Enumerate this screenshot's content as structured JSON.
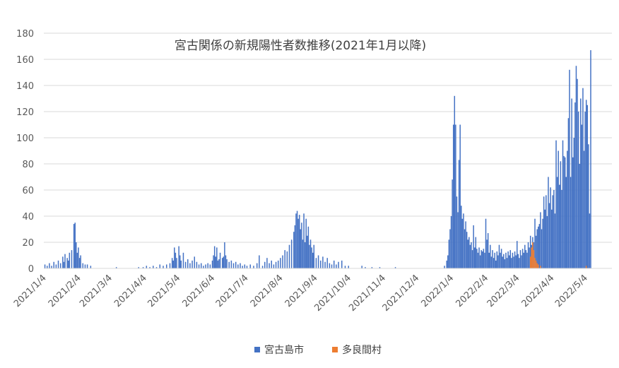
{
  "chart_data": {
    "type": "bar",
    "title": "宮古関係の新規陽性者数推移(2021年1月以降)",
    "xlabel": "",
    "ylabel": "",
    "ylim": [
      0,
      180
    ],
    "yticks": [
      0,
      20,
      40,
      60,
      80,
      100,
      120,
      140,
      160,
      180
    ],
    "x_range": [
      "2021-01-04",
      "2022-05-28"
    ],
    "x_tick_labels": [
      "2021/1/4",
      "2021/2/4",
      "2021/3/4",
      "2021/4/4",
      "2021/5/4",
      "2021/6/4",
      "2021/7/4",
      "2021/8/4",
      "2021/9/4",
      "2021/10/4",
      "2021/11/4",
      "2021/12/4",
      "2022/1/4",
      "2022/2/4",
      "2022/3/4",
      "2022/4/4",
      "2022/5/4"
    ],
    "grid": true,
    "legend_position": "bottom",
    "series_note": "approximate values read from the chart",
    "series": [
      {
        "name": "宮古島市",
        "color": "#4472C4",
        "points": [
          [
            "2021-01-05",
            3
          ],
          [
            "2021-01-07",
            2
          ],
          [
            "2021-01-09",
            4
          ],
          [
            "2021-01-11",
            2
          ],
          [
            "2021-01-13",
            5
          ],
          [
            "2021-01-15",
            3
          ],
          [
            "2021-01-17",
            6
          ],
          [
            "2021-01-19",
            4
          ],
          [
            "2021-01-21",
            9
          ],
          [
            "2021-01-22",
            5
          ],
          [
            "2021-01-23",
            11
          ],
          [
            "2021-01-25",
            8
          ],
          [
            "2021-01-26",
            6
          ],
          [
            "2021-01-27",
            12
          ],
          [
            "2021-01-29",
            14
          ],
          [
            "2021-01-31",
            34
          ],
          [
            "2021-02-01",
            35
          ],
          [
            "2021-02-02",
            20
          ],
          [
            "2021-02-03",
            12
          ],
          [
            "2021-02-04",
            16
          ],
          [
            "2021-02-05",
            8
          ],
          [
            "2021-02-06",
            10
          ],
          [
            "2021-02-08",
            4
          ],
          [
            "2021-02-10",
            3
          ],
          [
            "2021-02-12",
            3
          ],
          [
            "2021-02-15",
            2
          ],
          [
            "2021-03-10",
            1
          ],
          [
            "2021-03-30",
            1
          ],
          [
            "2021-04-03",
            1
          ],
          [
            "2021-04-06",
            2
          ],
          [
            "2021-04-09",
            1
          ],
          [
            "2021-04-12",
            2
          ],
          [
            "2021-04-15",
            1
          ],
          [
            "2021-04-18",
            3
          ],
          [
            "2021-04-21",
            2
          ],
          [
            "2021-04-24",
            3
          ],
          [
            "2021-04-27",
            4
          ],
          [
            "2021-04-29",
            8
          ],
          [
            "2021-04-30",
            6
          ],
          [
            "2021-05-01",
            16
          ],
          [
            "2021-05-02",
            12
          ],
          [
            "2021-05-03",
            8
          ],
          [
            "2021-05-05",
            17
          ],
          [
            "2021-05-06",
            10
          ],
          [
            "2021-05-07",
            6
          ],
          [
            "2021-05-09",
            12
          ],
          [
            "2021-05-11",
            5
          ],
          [
            "2021-05-13",
            7
          ],
          [
            "2021-05-15",
            4
          ],
          [
            "2021-05-17",
            6
          ],
          [
            "2021-05-19",
            9
          ],
          [
            "2021-05-21",
            5
          ],
          [
            "2021-05-23",
            3
          ],
          [
            "2021-05-25",
            4
          ],
          [
            "2021-05-27",
            2
          ],
          [
            "2021-05-29",
            3
          ],
          [
            "2021-05-31",
            4
          ],
          [
            "2021-06-02",
            3
          ],
          [
            "2021-06-04",
            6
          ],
          [
            "2021-06-05",
            10
          ],
          [
            "2021-06-06",
            17
          ],
          [
            "2021-06-07",
            9
          ],
          [
            "2021-06-08",
            16
          ],
          [
            "2021-06-09",
            6
          ],
          [
            "2021-06-10",
            7
          ],
          [
            "2021-06-11",
            12
          ],
          [
            "2021-06-13",
            8
          ],
          [
            "2021-06-14",
            9
          ],
          [
            "2021-06-15",
            20
          ],
          [
            "2021-06-16",
            10
          ],
          [
            "2021-06-17",
            7
          ],
          [
            "2021-06-19",
            5
          ],
          [
            "2021-06-21",
            6
          ],
          [
            "2021-06-23",
            4
          ],
          [
            "2021-06-25",
            5
          ],
          [
            "2021-06-27",
            3
          ],
          [
            "2021-06-29",
            4
          ],
          [
            "2021-07-01",
            2
          ],
          [
            "2021-07-03",
            3
          ],
          [
            "2021-07-05",
            2
          ],
          [
            "2021-07-08",
            3
          ],
          [
            "2021-07-11",
            2
          ],
          [
            "2021-07-14",
            4
          ],
          [
            "2021-07-16",
            10
          ],
          [
            "2021-07-19",
            2
          ],
          [
            "2021-07-21",
            5
          ],
          [
            "2021-07-23",
            8
          ],
          [
            "2021-07-25",
            4
          ],
          [
            "2021-07-27",
            6
          ],
          [
            "2021-07-29",
            3
          ],
          [
            "2021-07-31",
            5
          ],
          [
            "2021-08-02",
            6
          ],
          [
            "2021-08-04",
            8
          ],
          [
            "2021-08-06",
            10
          ],
          [
            "2021-08-08",
            14
          ],
          [
            "2021-08-10",
            13
          ],
          [
            "2021-08-12",
            18
          ],
          [
            "2021-08-14",
            22
          ],
          [
            "2021-08-16",
            28
          ],
          [
            "2021-08-17",
            33
          ],
          [
            "2021-08-18",
            42
          ],
          [
            "2021-08-19",
            44
          ],
          [
            "2021-08-20",
            38
          ],
          [
            "2021-08-21",
            41
          ],
          [
            "2021-08-22",
            30
          ],
          [
            "2021-08-23",
            35
          ],
          [
            "2021-08-24",
            22
          ],
          [
            "2021-08-25",
            42
          ],
          [
            "2021-08-26",
            20
          ],
          [
            "2021-08-27",
            38
          ],
          [
            "2021-08-28",
            25
          ],
          [
            "2021-08-29",
            32
          ],
          [
            "2021-08-30",
            18
          ],
          [
            "2021-08-31",
            22
          ],
          [
            "2021-09-01",
            16
          ],
          [
            "2021-09-02",
            12
          ],
          [
            "2021-09-03",
            18
          ],
          [
            "2021-09-05",
            8
          ],
          [
            "2021-09-07",
            10
          ],
          [
            "2021-09-09",
            6
          ],
          [
            "2021-09-11",
            9
          ],
          [
            "2021-09-13",
            5
          ],
          [
            "2021-09-15",
            8
          ],
          [
            "2021-09-17",
            4
          ],
          [
            "2021-09-19",
            3
          ],
          [
            "2021-09-21",
            6
          ],
          [
            "2021-09-23",
            3
          ],
          [
            "2021-09-25",
            5
          ],
          [
            "2021-09-28",
            6
          ],
          [
            "2021-10-01",
            2
          ],
          [
            "2021-10-04",
            2
          ],
          [
            "2021-10-16",
            2
          ],
          [
            "2021-10-19",
            1
          ],
          [
            "2021-10-25",
            1
          ],
          [
            "2021-11-01",
            1
          ],
          [
            "2021-11-15",
            1
          ],
          [
            "2021-12-29",
            2
          ],
          [
            "2021-12-31",
            6
          ],
          [
            "2022-01-01",
            10
          ],
          [
            "2022-01-02",
            22
          ],
          [
            "2022-01-03",
            30
          ],
          [
            "2022-01-04",
            40
          ],
          [
            "2022-01-05",
            68
          ],
          [
            "2022-01-06",
            110
          ],
          [
            "2022-01-07",
            132
          ],
          [
            "2022-01-08",
            110
          ],
          [
            "2022-01-09",
            55
          ],
          [
            "2022-01-10",
            43
          ],
          [
            "2022-01-11",
            83
          ],
          [
            "2022-01-12",
            110
          ],
          [
            "2022-01-13",
            48
          ],
          [
            "2022-01-14",
            38
          ],
          [
            "2022-01-15",
            42
          ],
          [
            "2022-01-16",
            30
          ],
          [
            "2022-01-17",
            36
          ],
          [
            "2022-01-18",
            28
          ],
          [
            "2022-01-19",
            22
          ],
          [
            "2022-01-20",
            24
          ],
          [
            "2022-01-21",
            18
          ],
          [
            "2022-01-22",
            20
          ],
          [
            "2022-01-23",
            14
          ],
          [
            "2022-01-24",
            33
          ],
          [
            "2022-01-25",
            16
          ],
          [
            "2022-01-26",
            24
          ],
          [
            "2022-01-27",
            15
          ],
          [
            "2022-01-28",
            12
          ],
          [
            "2022-01-29",
            16
          ],
          [
            "2022-01-30",
            10
          ],
          [
            "2022-01-31",
            14
          ],
          [
            "2022-02-01",
            13
          ],
          [
            "2022-02-02",
            15
          ],
          [
            "2022-02-03",
            12
          ],
          [
            "2022-02-04",
            38
          ],
          [
            "2022-02-05",
            22
          ],
          [
            "2022-02-06",
            27
          ],
          [
            "2022-02-07",
            12
          ],
          [
            "2022-02-08",
            18
          ],
          [
            "2022-02-09",
            9
          ],
          [
            "2022-02-10",
            14
          ],
          [
            "2022-02-11",
            8
          ],
          [
            "2022-02-12",
            12
          ],
          [
            "2022-02-13",
            6
          ],
          [
            "2022-02-14",
            13
          ],
          [
            "2022-02-15",
            10
          ],
          [
            "2022-02-16",
            18
          ],
          [
            "2022-02-17",
            12
          ],
          [
            "2022-02-18",
            15
          ],
          [
            "2022-02-19",
            9
          ],
          [
            "2022-02-20",
            11
          ],
          [
            "2022-02-21",
            7
          ],
          [
            "2022-02-22",
            12
          ],
          [
            "2022-02-23",
            8
          ],
          [
            "2022-02-24",
            13
          ],
          [
            "2022-02-25",
            10
          ],
          [
            "2022-02-26",
            14
          ],
          [
            "2022-02-27",
            8
          ],
          [
            "2022-02-28",
            12
          ],
          [
            "2022-03-01",
            9
          ],
          [
            "2022-03-02",
            13
          ],
          [
            "2022-03-03",
            10
          ],
          [
            "2022-03-04",
            21
          ],
          [
            "2022-03-05",
            11
          ],
          [
            "2022-03-06",
            8
          ],
          [
            "2022-03-07",
            14
          ],
          [
            "2022-03-08",
            10
          ],
          [
            "2022-03-09",
            15
          ],
          [
            "2022-03-10",
            12
          ],
          [
            "2022-03-11",
            18
          ],
          [
            "2022-03-12",
            14
          ],
          [
            "2022-03-13",
            12
          ],
          [
            "2022-03-14",
            20
          ],
          [
            "2022-03-15",
            16
          ],
          [
            "2022-03-16",
            25
          ],
          [
            "2022-03-17",
            18
          ],
          [
            "2022-03-18",
            24
          ],
          [
            "2022-03-19",
            20
          ],
          [
            "2022-03-20",
            38
          ],
          [
            "2022-03-21",
            25
          ],
          [
            "2022-03-22",
            30
          ],
          [
            "2022-03-23",
            32
          ],
          [
            "2022-03-24",
            34
          ],
          [
            "2022-03-25",
            43
          ],
          [
            "2022-03-26",
            30
          ],
          [
            "2022-03-27",
            38
          ],
          [
            "2022-03-28",
            55
          ],
          [
            "2022-03-29",
            45
          ],
          [
            "2022-03-30",
            56
          ],
          [
            "2022-03-31",
            40
          ],
          [
            "2022-04-01",
            70
          ],
          [
            "2022-04-02",
            50
          ],
          [
            "2022-04-03",
            62
          ],
          [
            "2022-04-04",
            45
          ],
          [
            "2022-04-05",
            56
          ],
          [
            "2022-04-06",
            60
          ],
          [
            "2022-04-07",
            42
          ],
          [
            "2022-04-08",
            98
          ],
          [
            "2022-04-09",
            70
          ],
          [
            "2022-04-10",
            90
          ],
          [
            "2022-04-11",
            64
          ],
          [
            "2022-04-12",
            82
          ],
          [
            "2022-04-13",
            60
          ],
          [
            "2022-04-14",
            98
          ],
          [
            "2022-04-15",
            86
          ],
          [
            "2022-04-16",
            85
          ],
          [
            "2022-04-17",
            70
          ],
          [
            "2022-04-18",
            90
          ],
          [
            "2022-04-19",
            115
          ],
          [
            "2022-04-20",
            152
          ],
          [
            "2022-04-21",
            70
          ],
          [
            "2022-04-22",
            130
          ],
          [
            "2022-04-23",
            85
          ],
          [
            "2022-04-24",
            100
          ],
          [
            "2022-04-25",
            127
          ],
          [
            "2022-04-26",
            155
          ],
          [
            "2022-04-27",
            145
          ],
          [
            "2022-04-28",
            120
          ],
          [
            "2022-04-29",
            80
          ],
          [
            "2022-04-30",
            130
          ],
          [
            "2022-05-01",
            110
          ],
          [
            "2022-05-02",
            138
          ],
          [
            "2022-05-03",
            90
          ],
          [
            "2022-05-04",
            120
          ],
          [
            "2022-05-05",
            129
          ],
          [
            "2022-05-06",
            125
          ],
          [
            "2022-05-07",
            95
          ],
          [
            "2022-05-08",
            42
          ],
          [
            "2022-05-09",
            167
          ]
        ]
      },
      {
        "name": "多良間村",
        "color": "#ED7D31",
        "points": [
          [
            "2022-03-16",
            9
          ],
          [
            "2022-03-17",
            16
          ],
          [
            "2022-03-18",
            20
          ],
          [
            "2022-03-19",
            14
          ],
          [
            "2022-03-20",
            8
          ],
          [
            "2022-03-21",
            6
          ],
          [
            "2022-03-22",
            4
          ],
          [
            "2022-03-23",
            3
          ],
          [
            "2022-03-25",
            2
          ],
          [
            "2022-05-05",
            2
          ]
        ]
      }
    ]
  }
}
